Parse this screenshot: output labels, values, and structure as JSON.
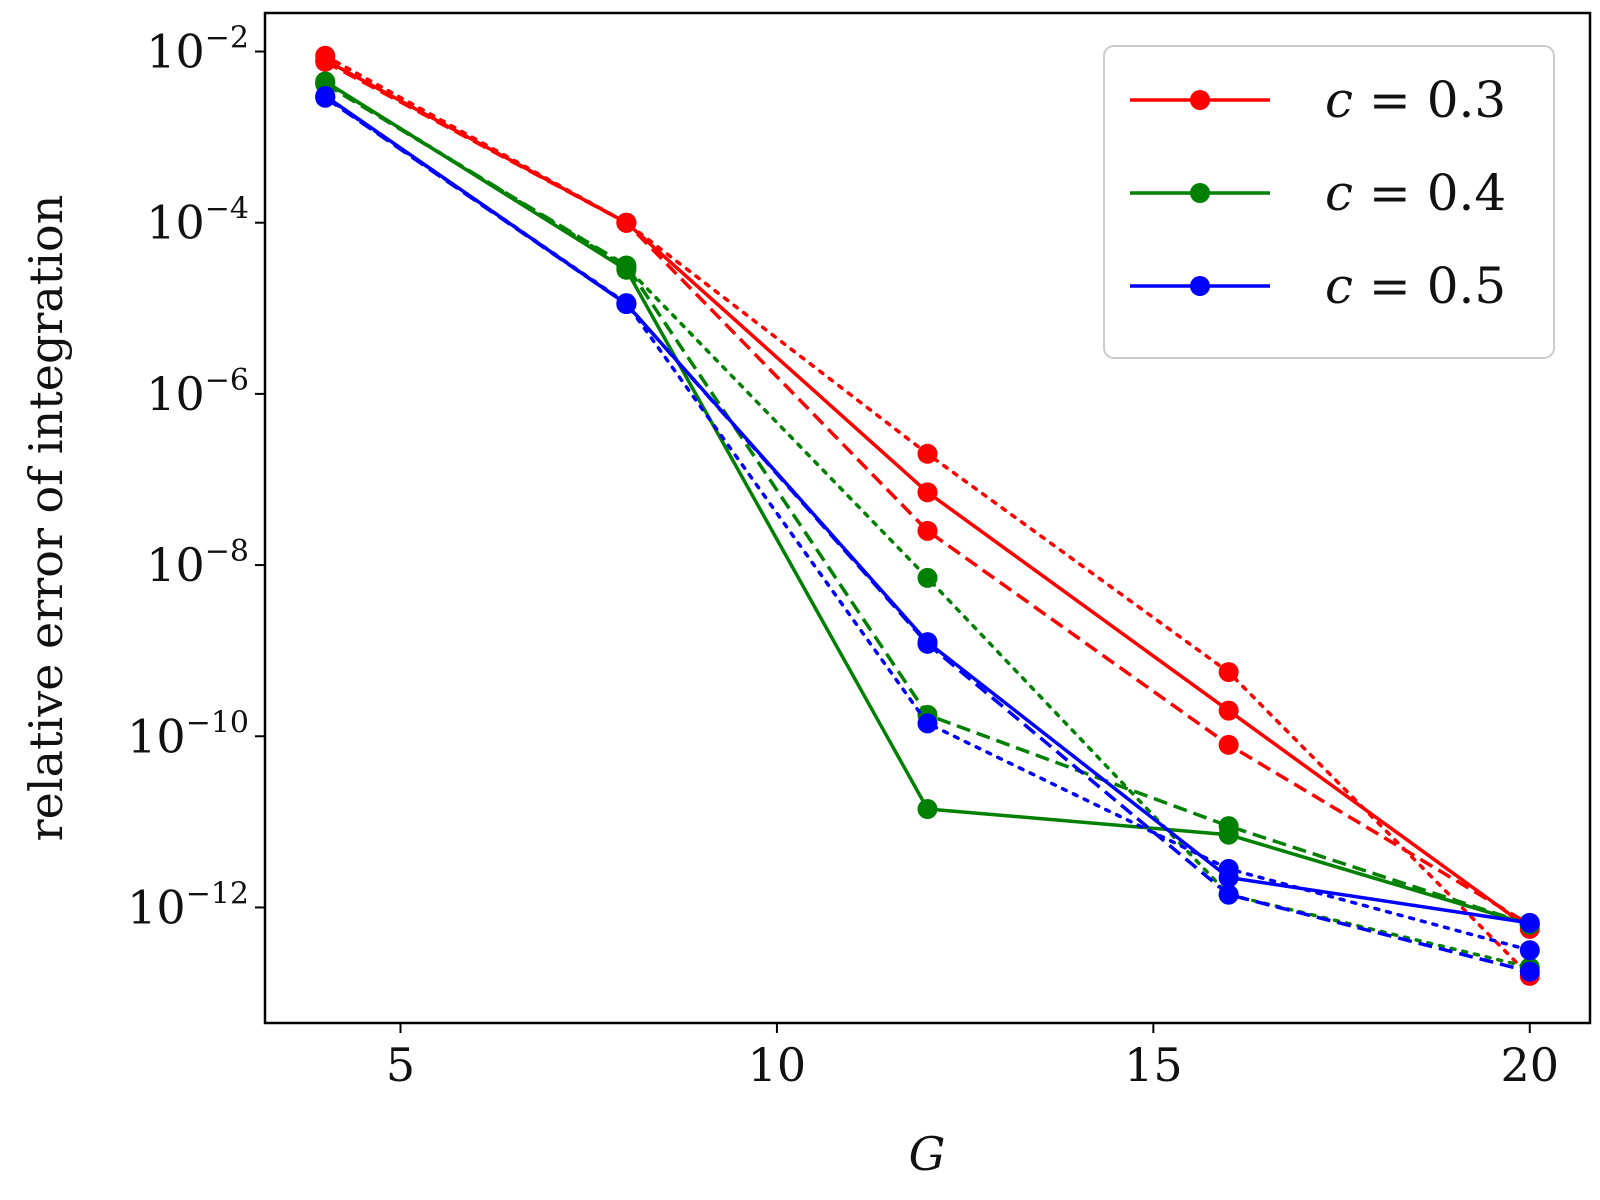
{
  "chart_data": {
    "type": "line",
    "title": "",
    "xlabel": "G",
    "ylabel": "relative error of integration",
    "yscale": "log",
    "xlim": [
      3.2,
      20.8
    ],
    "ylim_log10": [
      -13.35,
      -1.55
    ],
    "x": [
      4,
      8,
      12,
      16,
      20
    ],
    "xticks": [
      5,
      10,
      15,
      20
    ],
    "yticks_exponents": [
      -2,
      -4,
      -6,
      -8,
      -10,
      -12
    ],
    "ytick_base": "10",
    "legend_position": "top-right",
    "series": [
      {
        "name": "c = 0.3, solid",
        "color": "#ff0000",
        "style": "solid",
        "log10_values": [
          -2.1,
          -4.0,
          -7.15,
          -9.7,
          -12.25
        ]
      },
      {
        "name": "c = 0.3, dashed",
        "color": "#ff0000",
        "style": "dashed",
        "log10_values": [
          -2.12,
          -4.0,
          -7.6,
          -10.1,
          -12.2
        ]
      },
      {
        "name": "c = 0.3, dotted",
        "color": "#ff0000",
        "style": "dotted",
        "log10_values": [
          -2.05,
          -4.0,
          -6.7,
          -9.25,
          -12.8
        ]
      },
      {
        "name": "c = 0.4, solid",
        "color": "#008000",
        "style": "solid",
        "log10_values": [
          -2.35,
          -4.55,
          -10.85,
          -11.15,
          -12.2
        ]
      },
      {
        "name": "c = 0.4, dashed",
        "color": "#008000",
        "style": "dashed",
        "log10_values": [
          -2.38,
          -4.5,
          -9.75,
          -11.05,
          -12.2
        ]
      },
      {
        "name": "c = 0.4, dotted",
        "color": "#008000",
        "style": "dotted",
        "log10_values": [
          -2.36,
          -4.52,
          -8.15,
          -11.85,
          -12.7
        ]
      },
      {
        "name": "c = 0.5, solid",
        "color": "#0000ff",
        "style": "solid",
        "log10_values": [
          -2.52,
          -4.95,
          -8.9,
          -11.65,
          -12.18
        ]
      },
      {
        "name": "c = 0.5, dashed",
        "color": "#0000ff",
        "style": "dashed",
        "log10_values": [
          -2.54,
          -4.95,
          -8.92,
          -11.85,
          -12.75
        ]
      },
      {
        "name": "c = 0.5, dotted",
        "color": "#0000ff",
        "style": "dotted",
        "log10_values": [
          -2.53,
          -4.94,
          -9.85,
          -11.55,
          -12.5
        ]
      }
    ],
    "legend": [
      {
        "label": "c = 0.3",
        "var": "c",
        "rel": "=",
        "num": "0.3",
        "color": "#ff0000"
      },
      {
        "label": "c = 0.4",
        "var": "c",
        "rel": "=",
        "num": "0.4",
        "color": "#008000"
      },
      {
        "label": "c = 0.5",
        "var": "c",
        "rel": "=",
        "num": "0.5",
        "color": "#0000ff"
      }
    ]
  }
}
